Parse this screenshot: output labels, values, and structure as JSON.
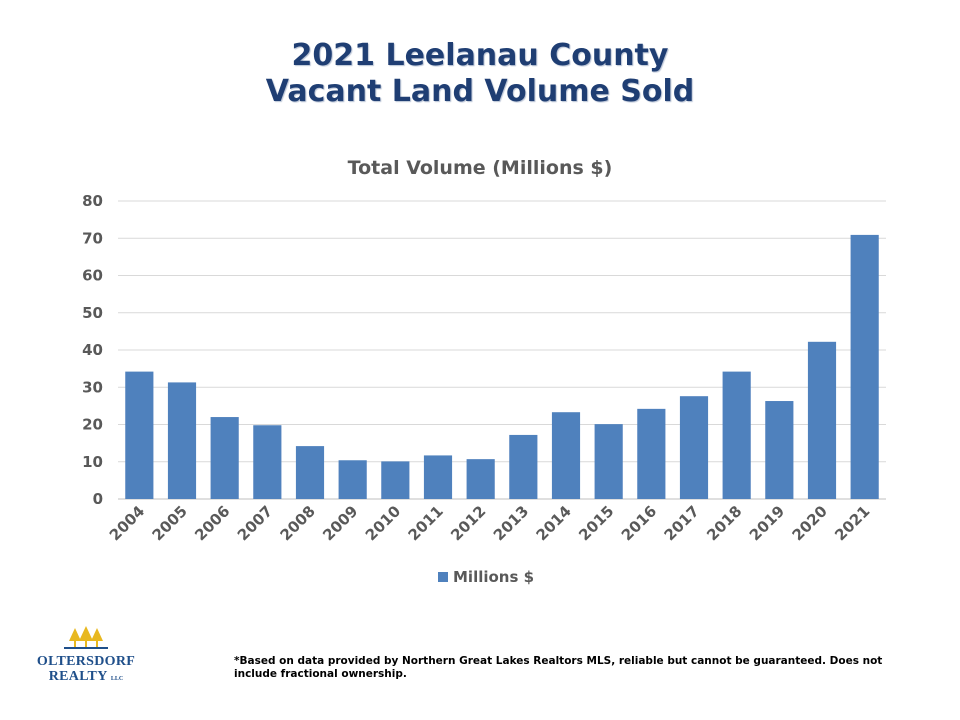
{
  "slide": {
    "title_line1": "2021 Leelanau County",
    "title_line2": "Vacant Land Volume Sold",
    "footnote": "*Based on data provided by Northern Great Lakes Realtors MLS, reliable but cannot be guaranteed. Does not include fractional ownership."
  },
  "logo": {
    "name_line1": "OLTERSDORF",
    "name_line2": "REALTY",
    "suffix": "LLC",
    "icon": "pine-trees-icon"
  },
  "chart_data": {
    "type": "bar",
    "title": "Total Volume (Millions $)",
    "xlabel": "",
    "ylabel": "",
    "categories": [
      "2004",
      "2005",
      "2006",
      "2007",
      "2008",
      "2009",
      "2010",
      "2011",
      "2012",
      "2013",
      "2014",
      "2015",
      "2016",
      "2017",
      "2018",
      "2019",
      "2020",
      "2021"
    ],
    "series": [
      {
        "name": "Millions $",
        "color": "#4f81bd",
        "values": [
          34.2,
          31.3,
          22.0,
          19.8,
          14.2,
          10.4,
          10.1,
          11.7,
          10.7,
          17.2,
          23.3,
          20.1,
          24.2,
          27.6,
          34.2,
          26.3,
          42.2,
          70.9
        ]
      }
    ],
    "ylim": [
      0,
      80
    ],
    "yticks": [
      "0",
      "10",
      "20",
      "30",
      "40",
      "50",
      "60",
      "70",
      "80"
    ],
    "grid": true,
    "legend_position": "bottom"
  }
}
